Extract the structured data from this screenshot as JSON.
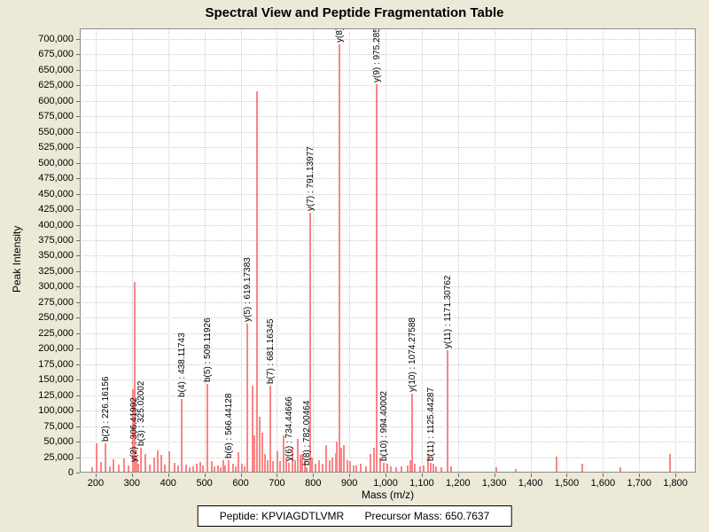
{
  "title": "Spectral View and Peptide Fragmentation Table",
  "axes": {
    "x_title": "Mass (m/z)",
    "y_title": "Peak Intensity"
  },
  "footer": {
    "peptide": "Peptide: KPVIAGDTLVMR",
    "precursor_mass": "Precursor Mass: 650.7637"
  },
  "colors": {
    "background": "#ECE9D8",
    "plot_background": "#FFFFFF",
    "peak": "#F98585",
    "grid": "#CBCBCB",
    "plot_border": "#8A8A8A",
    "text": "#000000"
  },
  "chart_data": {
    "type": "bar",
    "title": "Spectral View and Peptide Fragmentation Table",
    "xlabel": "Mass (m/z)",
    "ylabel": "Peak Intensity",
    "xlim": [
      156,
      1856
    ],
    "ylim": [
      0,
      717000
    ],
    "x_ticks": {
      "min": 200,
      "max": 1800,
      "step": 100
    },
    "y_ticks": {
      "min": 0,
      "max": 700000,
      "step": 25000
    },
    "grid": "dotted",
    "legend": "none",
    "labeled_peaks": [
      {
        "label": "b(2) : 226.16156",
        "mz": 226.16156,
        "intensity": 47000
      },
      {
        "label": "y(2) : 306.41992",
        "mz": 306.41992,
        "intensity": 14000
      },
      {
        "label": "b(3) : 325.02002",
        "mz": 325.02002,
        "intensity": 40000
      },
      {
        "label": "b(4) : 438.11743",
        "mz": 438.11743,
        "intensity": 119000
      },
      {
        "label": "b(5) : 509.11926",
        "mz": 509.11926,
        "intensity": 143000
      },
      {
        "label": "b(6) : 566.44128",
        "mz": 566.44128,
        "intensity": 20000
      },
      {
        "label": "y(5) : 619.17383",
        "mz": 619.17383,
        "intensity": 240000
      },
      {
        "label": "b(7) : 681.16345",
        "mz": 681.16345,
        "intensity": 140000
      },
      {
        "label": "y(6) : 734.44666",
        "mz": 734.44666,
        "intensity": 16000
      },
      {
        "label": "b(8) : 782.00464",
        "mz": 782.00464,
        "intensity": 8000
      },
      {
        "label": "y(7) : 791.13977",
        "mz": 791.13977,
        "intensity": 419000
      },
      {
        "label": "y(8) :",
        "mz": 872,
        "intensity": 691000
      },
      {
        "label": "y(9) : 975.285",
        "mz": 975.285,
        "intensity": 627000
      },
      {
        "label": "b(10) : 994.40002",
        "mz": 994.40002,
        "intensity": 16000
      },
      {
        "label": "y(10) : 1074.27588",
        "mz": 1074.27588,
        "intensity": 128000
      },
      {
        "label": "b(11) : 1125.44287",
        "mz": 1125.44287,
        "intensity": 16000
      },
      {
        "label": "y(11) : 1171.30762",
        "mz": 1171.30762,
        "intensity": 198000
      }
    ],
    "unlabeled_peaks": [
      [
        190,
        8000
      ],
      [
        203,
        47000
      ],
      [
        215,
        17000
      ],
      [
        238,
        10000
      ],
      [
        249,
        21000
      ],
      [
        264,
        13000
      ],
      [
        278,
        23000
      ],
      [
        290,
        12000
      ],
      [
        303,
        135000
      ],
      [
        308,
        307000
      ],
      [
        313,
        26000
      ],
      [
        318,
        14000
      ],
      [
        337,
        30000
      ],
      [
        349,
        13000
      ],
      [
        361,
        24000
      ],
      [
        371,
        36000
      ],
      [
        381,
        29000
      ],
      [
        391,
        13000
      ],
      [
        403,
        34000
      ],
      [
        418,
        16000
      ],
      [
        428,
        12000
      ],
      [
        449,
        13000
      ],
      [
        459,
        9000
      ],
      [
        469,
        10000
      ],
      [
        480,
        14000
      ],
      [
        489,
        17000
      ],
      [
        497,
        12000
      ],
      [
        520,
        18000
      ],
      [
        529,
        10000
      ],
      [
        537,
        11000
      ],
      [
        545,
        9000
      ],
      [
        552,
        20000
      ],
      [
        558,
        12000
      ],
      [
        579,
        14000
      ],
      [
        586,
        10000
      ],
      [
        594,
        33000
      ],
      [
        604,
        14000
      ],
      [
        611,
        10000
      ],
      [
        633,
        140000
      ],
      [
        638,
        60000
      ],
      [
        645,
        615000
      ],
      [
        652,
        90000
      ],
      [
        660,
        65000
      ],
      [
        668,
        30000
      ],
      [
        674,
        20000
      ],
      [
        690,
        18000
      ],
      [
        701,
        35000
      ],
      [
        709,
        18000
      ],
      [
        718,
        60000
      ],
      [
        726,
        25000
      ],
      [
        743,
        40000
      ],
      [
        750,
        20000
      ],
      [
        758,
        55000
      ],
      [
        765,
        28000
      ],
      [
        771,
        30000
      ],
      [
        777,
        20000
      ],
      [
        798,
        25000
      ],
      [
        806,
        15000
      ],
      [
        816,
        20000
      ],
      [
        826,
        15000
      ],
      [
        836,
        45000
      ],
      [
        845,
        20000
      ],
      [
        853,
        25000
      ],
      [
        862,
        32000
      ],
      [
        866,
        50000
      ],
      [
        878,
        40000
      ],
      [
        885,
        45000
      ],
      [
        895,
        20000
      ],
      [
        903,
        18000
      ],
      [
        912,
        12000
      ],
      [
        920,
        12000
      ],
      [
        932,
        15000
      ],
      [
        945,
        10000
      ],
      [
        958,
        30000
      ],
      [
        968,
        40000
      ],
      [
        985,
        25000
      ],
      [
        1005,
        15000
      ],
      [
        1015,
        10000
      ],
      [
        1030,
        8000
      ],
      [
        1045,
        10000
      ],
      [
        1060,
        12000
      ],
      [
        1068,
        20000
      ],
      [
        1080,
        15000
      ],
      [
        1095,
        10000
      ],
      [
        1105,
        12000
      ],
      [
        1118,
        30000
      ],
      [
        1132,
        15000
      ],
      [
        1140,
        10000
      ],
      [
        1155,
        8000
      ],
      [
        1180,
        10000
      ],
      [
        1305,
        8000
      ],
      [
        1360,
        6000
      ],
      [
        1472,
        26000
      ],
      [
        1543,
        15000
      ],
      [
        1648,
        9000
      ],
      [
        1785,
        30000
      ]
    ]
  }
}
